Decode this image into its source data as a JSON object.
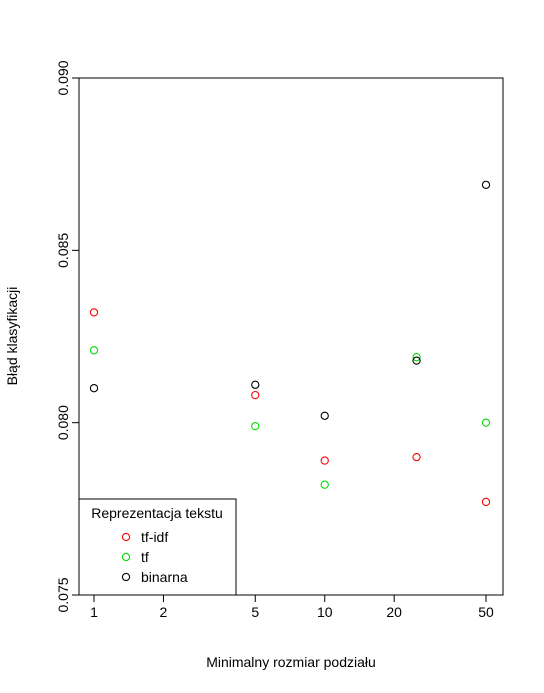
{
  "chart_data": {
    "type": "scatter",
    "title": "",
    "xlabel": "Minimalny rozmiar podziału",
    "ylabel": "Błąd klasyfikacji",
    "x_scale": "log",
    "xlim": [
      1,
      50
    ],
    "ylim": [
      0.075,
      0.09
    ],
    "x_ticks": [
      1,
      2,
      5,
      10,
      20,
      50
    ],
    "y_ticks": [
      0.075,
      0.08,
      0.085,
      0.09
    ],
    "x_tick_labels": [
      "1",
      "2",
      "5",
      "10",
      "20",
      "50"
    ],
    "y_tick_labels": [
      "0.075",
      "0.080",
      "0.085",
      "0.090"
    ],
    "grid": false,
    "legend": {
      "title": "Reprezentacja tekstu",
      "position": "bottom-left"
    },
    "series": [
      {
        "name": "tf-idf",
        "color": "#ff0000",
        "points": [
          [
            1,
            0.0832
          ],
          [
            5,
            0.0808
          ],
          [
            10,
            0.0789
          ],
          [
            25,
            0.079
          ],
          [
            50,
            0.0777
          ]
        ]
      },
      {
        "name": "tf",
        "color": "#00dd00",
        "points": [
          [
            1,
            0.0821
          ],
          [
            5,
            0.0799
          ],
          [
            10,
            0.0782
          ],
          [
            25,
            0.0819
          ],
          [
            50,
            0.08
          ]
        ]
      },
      {
        "name": "binarna",
        "color": "#000000",
        "points": [
          [
            1,
            0.081
          ],
          [
            5,
            0.0811
          ],
          [
            10,
            0.0802
          ],
          [
            25,
            0.0818
          ],
          [
            50,
            0.0869
          ]
        ]
      }
    ]
  }
}
